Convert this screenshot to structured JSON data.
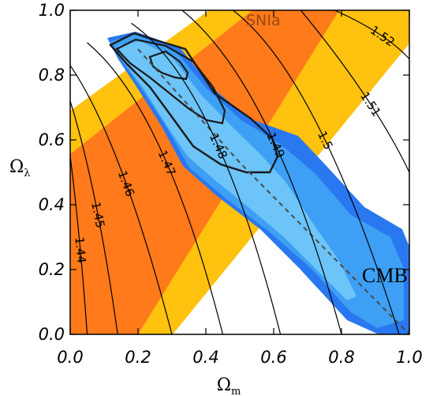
{
  "chart_data": {
    "type": "contour",
    "xlabel": "Ω",
    "xlabel_sub": "m",
    "ylabel": "Ω",
    "ylabel_sub": "λ",
    "xlim": [
      0.0,
      1.0
    ],
    "ylim": [
      0.0,
      1.0
    ],
    "x_ticks": [
      "0.0",
      "0.2",
      "0.4",
      "0.6",
      "0.8",
      "1.0"
    ],
    "y_ticks": [
      "0.0",
      "0.2",
      "0.4",
      "0.6",
      "0.8",
      "1.0"
    ],
    "annotations": {
      "snia": "SNIa",
      "cmb": "CMB"
    },
    "colors": {
      "snia_outer": "#ffc20e",
      "snia_inner": "#ff7a1a",
      "cmb_outer": "#2a78f0",
      "cmb_mid": "#3ea0f4",
      "cmb_inner": "#6cc4f8",
      "contour_lines": "#000000",
      "dashed_line": "#4a4a4a"
    },
    "snia_band_center": [
      [
        0.0,
        0.0
      ],
      [
        1.0,
        1.0
      ]
    ],
    "cmb_degeneracy_line": [
      [
        0.2,
        0.88
      ],
      [
        0.5,
        0.53
      ],
      [
        1.0,
        0.0
      ]
    ],
    "contour_lines": [
      {
        "label": "1.44",
        "points": [
          [
            0.0,
            0.55
          ],
          [
            0.03,
            0.3
          ],
          [
            0.05,
            0.0
          ]
        ]
      },
      {
        "label": "1.45",
        "points": [
          [
            0.0,
            0.72
          ],
          [
            0.08,
            0.45
          ],
          [
            0.14,
            0.0
          ]
        ]
      },
      {
        "label": "1.46",
        "points": [
          [
            0.0,
            0.83
          ],
          [
            0.15,
            0.6
          ],
          [
            0.3,
            0.0
          ]
        ]
      },
      {
        "label": "1.47",
        "points": [
          [
            0.05,
            0.9
          ],
          [
            0.28,
            0.7
          ],
          [
            0.45,
            0.0
          ]
        ]
      },
      {
        "label": "1.48",
        "points": [
          [
            0.18,
            0.96
          ],
          [
            0.43,
            0.78
          ],
          [
            0.62,
            0.0
          ]
        ]
      },
      {
        "label": "1.49",
        "points": [
          [
            0.33,
            1.0
          ],
          [
            0.6,
            0.77
          ],
          [
            0.8,
            0.0
          ]
        ]
      },
      {
        "label": "1.5",
        "points": [
          [
            0.48,
            1.0
          ],
          [
            0.73,
            0.8
          ],
          [
            0.97,
            0.0
          ]
        ]
      },
      {
        "label": "1.51",
        "points": [
          [
            0.68,
            1.0
          ],
          [
            0.9,
            0.72
          ],
          [
            1.0,
            0.5
          ]
        ]
      },
      {
        "label": "1.52",
        "points": [
          [
            0.78,
            1.0
          ],
          [
            0.93,
            0.93
          ],
          [
            1.0,
            0.85
          ]
        ]
      }
    ]
  }
}
